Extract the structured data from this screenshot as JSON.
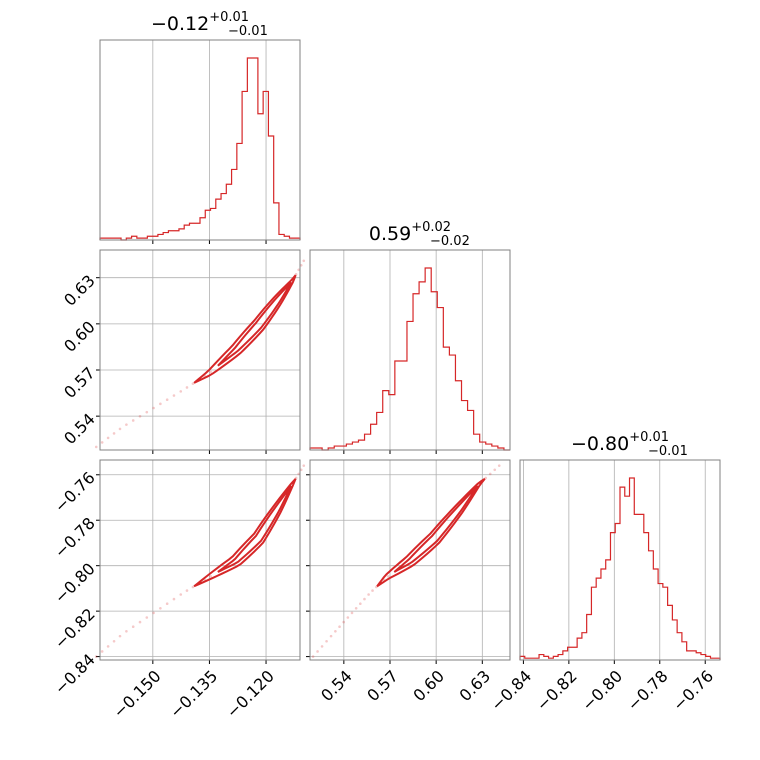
{
  "figure": {
    "type": "corner-plot",
    "color": "#d62728",
    "grid": true
  },
  "params": [
    {
      "title": {
        "value": "−0.12",
        "plus": "+0.01",
        "minus": "−0.01"
      },
      "median": -0.122,
      "range": [
        -0.164,
        -0.111
      ]
    },
    {
      "title": {
        "value": "0.59",
        "plus": "+0.02",
        "minus": "−0.02"
      },
      "median": 0.594,
      "range": [
        0.518,
        0.648
      ]
    },
    {
      "title": {
        "value": "−0.80",
        "plus": "+0.01",
        "minus": "−0.01"
      },
      "median": -0.797,
      "range": [
        -0.8415,
        -0.7535
      ]
    }
  ],
  "ticks": {
    "p0": {
      "values": [
        -0.15,
        -0.135,
        -0.12
      ],
      "labels": [
        "−0.150",
        "−0.135",
        "−0.120"
      ]
    },
    "p1": {
      "values": [
        0.54,
        0.57,
        0.6,
        0.63
      ],
      "labels": [
        "0.54",
        "0.57",
        "0.60",
        "0.63"
      ]
    },
    "p2": {
      "values": [
        -0.84,
        -0.82,
        -0.8,
        -0.78,
        -0.76
      ],
      "labels": [
        "−0.84",
        "−0.82",
        "−0.80",
        "−0.78",
        "−0.76"
      ]
    }
  },
  "chart_data": {
    "type": "corner",
    "histograms": [
      {
        "param": 0,
        "x_range": [
          -0.164,
          -0.111
        ],
        "counts": [
          1,
          1,
          1,
          1,
          0,
          1,
          2,
          1,
          1,
          2,
          2,
          3,
          4,
          5,
          5,
          6,
          8,
          9,
          9,
          12,
          16,
          17,
          22,
          25,
          30,
          38,
          52,
          80,
          98,
          98,
          68,
          80,
          56,
          20,
          3,
          2,
          1,
          1
        ]
      },
      {
        "param": 1,
        "x_range": [
          0.518,
          0.648
        ],
        "counts": [
          1,
          1,
          0,
          1,
          2,
          2,
          3,
          4,
          5,
          8,
          13,
          19,
          30,
          28,
          45,
          45,
          65,
          79,
          85,
          92,
          80,
          72,
          52,
          48,
          35,
          25,
          20,
          8,
          4,
          3,
          2,
          1,
          0
        ]
      },
      {
        "param": 2,
        "x_range": [
          -0.8415,
          -0.7535
        ],
        "counts": [
          2,
          1,
          1,
          1,
          3,
          2,
          1,
          2,
          3,
          5,
          7,
          7,
          12,
          15,
          25,
          40,
          45,
          50,
          55,
          70,
          75,
          95,
          90,
          100,
          80,
          80,
          70,
          60,
          50,
          42,
          40,
          30,
          22,
          15,
          10,
          5,
          5,
          4,
          3,
          2,
          1,
          1
        ]
      }
    ],
    "pairs": [
      {
        "x_param": 0,
        "y_param": 1,
        "x": [
          -0.165,
          -0.158,
          -0.15,
          -0.142,
          -0.135,
          -0.128,
          -0.122,
          -0.117,
          -0.113,
          -0.11
        ],
        "y": [
          0.52,
          0.533,
          0.545,
          0.557,
          0.568,
          0.583,
          0.599,
          0.615,
          0.628,
          0.641
        ]
      },
      {
        "x_param": 0,
        "y_param": 2,
        "x": [
          -0.165,
          -0.158,
          -0.15,
          -0.142,
          -0.135,
          -0.128,
          -0.122,
          -0.117,
          -0.113,
          -0.11
        ],
        "y": [
          -0.84,
          -0.83,
          -0.821,
          -0.812,
          -0.805,
          -0.798,
          -0.788,
          -0.775,
          -0.764,
          -0.756
        ]
      },
      {
        "x_param": 1,
        "y_param": 2,
        "x": [
          0.52,
          0.533,
          0.545,
          0.557,
          0.568,
          0.583,
          0.599,
          0.615,
          0.628,
          0.641
        ],
        "y": [
          -0.84,
          -0.83,
          -0.821,
          -0.812,
          -0.805,
          -0.798,
          -0.788,
          -0.775,
          -0.764,
          -0.756
        ]
      }
    ]
  }
}
